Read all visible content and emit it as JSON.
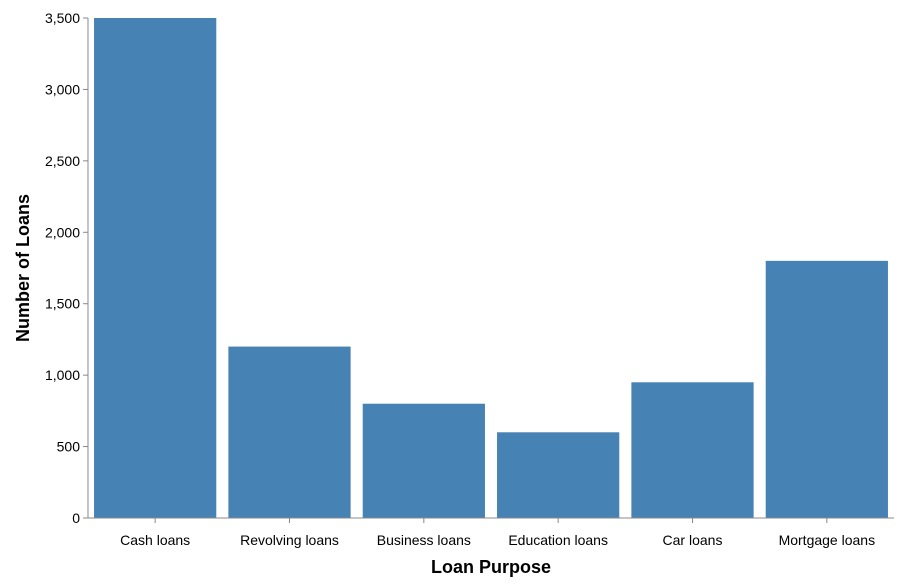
{
  "chart_data": {
    "type": "bar",
    "xlabel": "Loan Purpose",
    "ylabel": "Number of Loans",
    "categories": [
      "Cash loans",
      "Revolving loans",
      "Business loans",
      "Education loans",
      "Car loans",
      "Mortgage loans"
    ],
    "values": [
      3500,
      1200,
      800,
      600,
      950,
      1800
    ],
    "ylim": [
      0,
      3500
    ],
    "yticks": [
      0,
      500,
      1000,
      1500,
      2000,
      2500,
      3000,
      3500
    ],
    "ytick_labels": [
      "0",
      "500",
      "1,000",
      "1,500",
      "2,000",
      "2,500",
      "3,000",
      "3,500"
    ],
    "grid": false,
    "legend": "none",
    "colors": {
      "bar": "#4682b4",
      "axis": "#888888"
    }
  }
}
